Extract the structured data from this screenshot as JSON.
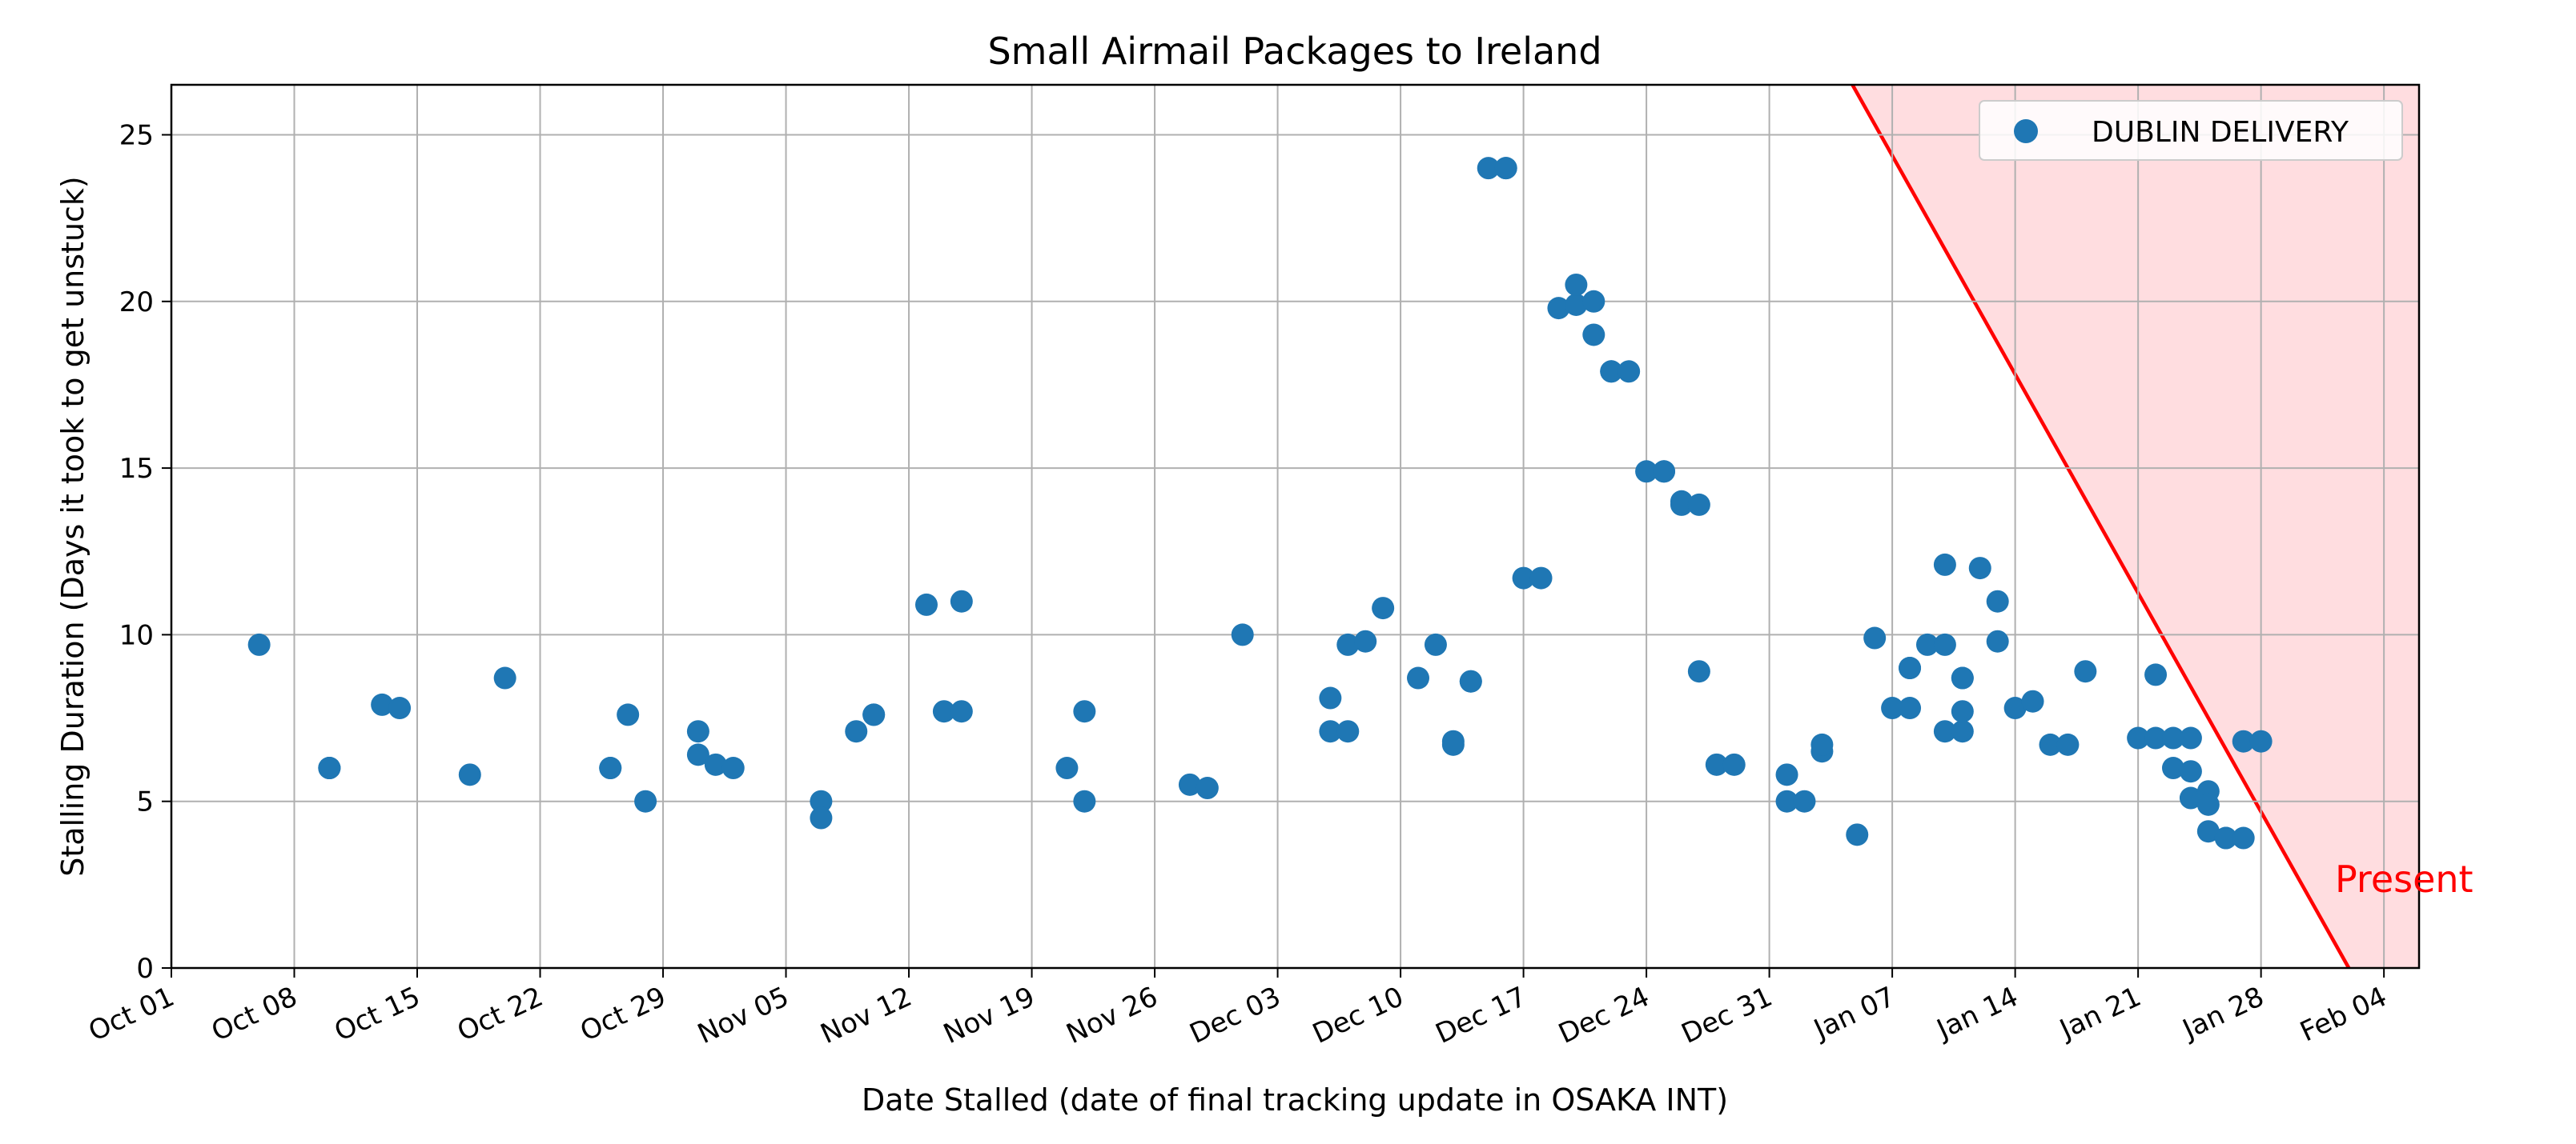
{
  "chart_data": {
    "type": "scatter",
    "title": "Small Airmail Packages to Ireland",
    "xlabel": "Date Stalled (date of final tracking update in OSAKA INT)",
    "ylabel": "Stalling Duration (Days it took to get unstuck)",
    "xlim": [
      "2023-10-01",
      "2024-02-06"
    ],
    "ylim": [
      0,
      26.5
    ],
    "x_ticks": [
      "Oct 01",
      "Oct 08",
      "Oct 15",
      "Oct 22",
      "Oct 29",
      "Nov 05",
      "Nov 12",
      "Nov 19",
      "Nov 26",
      "Dec 03",
      "Dec 10",
      "Dec 17",
      "Dec 24",
      "Dec 31",
      "Jan 07",
      "Jan 14",
      "Jan 21",
      "Jan 28",
      "Feb 04"
    ],
    "x_tick_dates": [
      "2023-10-01",
      "2023-10-08",
      "2023-10-15",
      "2023-10-22",
      "2023-10-29",
      "2023-11-05",
      "2023-11-12",
      "2023-11-19",
      "2023-11-26",
      "2023-12-03",
      "2023-12-10",
      "2023-12-17",
      "2023-12-24",
      "2023-12-31",
      "2024-01-07",
      "2024-01-14",
      "2024-01-21",
      "2024-01-28",
      "2024-02-04"
    ],
    "y_ticks": [
      0,
      5,
      10,
      15,
      20,
      25
    ],
    "grid": true,
    "legend_position": "top-right",
    "series": [
      {
        "name": "DUBLIN DELIVERY",
        "color": "#1f77b4",
        "points": [
          [
            "2023-10-06",
            9.7
          ],
          [
            "2023-10-10",
            6.0
          ],
          [
            "2023-10-10",
            6.0
          ],
          [
            "2023-10-10",
            6.0
          ],
          [
            "2023-10-13",
            7.9
          ],
          [
            "2023-10-14",
            7.8
          ],
          [
            "2023-10-18",
            5.8
          ],
          [
            "2023-10-20",
            8.7
          ],
          [
            "2023-10-26",
            6.0
          ],
          [
            "2023-10-26",
            6.0
          ],
          [
            "2023-10-27",
            7.6
          ],
          [
            "2023-10-28",
            5.0
          ],
          [
            "2023-10-31",
            7.1
          ],
          [
            "2023-10-31",
            6.4
          ],
          [
            "2023-11-01",
            6.1
          ],
          [
            "2023-11-02",
            6.0
          ],
          [
            "2023-11-07",
            5.0
          ],
          [
            "2023-11-07",
            4.5
          ],
          [
            "2023-11-09",
            7.1
          ],
          [
            "2023-11-10",
            7.6
          ],
          [
            "2023-11-10",
            7.6
          ],
          [
            "2023-11-13",
            10.9
          ],
          [
            "2023-11-14",
            7.7
          ],
          [
            "2023-11-15",
            11.0
          ],
          [
            "2023-11-15",
            7.7
          ],
          [
            "2023-11-21",
            6.0
          ],
          [
            "2023-11-22",
            7.7
          ],
          [
            "2023-11-22",
            5.0
          ],
          [
            "2023-11-28",
            5.5
          ],
          [
            "2023-11-29",
            5.4
          ],
          [
            "2023-12-01",
            10.0
          ],
          [
            "2023-12-06",
            8.1
          ],
          [
            "2023-12-06",
            7.1
          ],
          [
            "2023-12-07",
            7.1
          ],
          [
            "2023-12-07",
            9.7
          ],
          [
            "2023-12-08",
            9.8
          ],
          [
            "2023-12-09",
            10.8
          ],
          [
            "2023-12-11",
            8.7
          ],
          [
            "2023-12-12",
            9.7
          ],
          [
            "2023-12-13",
            6.7
          ],
          [
            "2023-12-13",
            6.8
          ],
          [
            "2023-12-14",
            8.6
          ],
          [
            "2023-12-14",
            8.6
          ],
          [
            "2023-12-15",
            24.0
          ],
          [
            "2023-12-16",
            24.0
          ],
          [
            "2023-12-16",
            24.0
          ],
          [
            "2023-12-17",
            11.7
          ],
          [
            "2023-12-18",
            11.7
          ],
          [
            "2023-12-19",
            19.8
          ],
          [
            "2023-12-20",
            19.9
          ],
          [
            "2023-12-20",
            20.5
          ],
          [
            "2023-12-21",
            19.0
          ],
          [
            "2023-12-21",
            20.0
          ],
          [
            "2023-12-22",
            17.9
          ],
          [
            "2023-12-22",
            17.9
          ],
          [
            "2023-12-23",
            17.9
          ],
          [
            "2023-12-24",
            14.9
          ],
          [
            "2023-12-25",
            14.9
          ],
          [
            "2023-12-25",
            14.9
          ],
          [
            "2023-12-26",
            13.9
          ],
          [
            "2023-12-26",
            14.0
          ],
          [
            "2023-12-27",
            13.9
          ],
          [
            "2023-12-27",
            8.9
          ],
          [
            "2023-12-28",
            6.1
          ],
          [
            "2023-12-29",
            6.1
          ],
          [
            "2024-01-01",
            5.8
          ],
          [
            "2024-01-01",
            5.0
          ],
          [
            "2024-01-02",
            5.0
          ],
          [
            "2024-01-03",
            6.5
          ],
          [
            "2024-01-03",
            6.7
          ],
          [
            "2024-01-05",
            4.0
          ],
          [
            "2024-01-06",
            9.9
          ],
          [
            "2024-01-07",
            7.8
          ],
          [
            "2024-01-08",
            7.8
          ],
          [
            "2024-01-08",
            9.0
          ],
          [
            "2024-01-08",
            9.0
          ],
          [
            "2024-01-09",
            9.7
          ],
          [
            "2024-01-10",
            9.7
          ],
          [
            "2024-01-10",
            7.1
          ],
          [
            "2024-01-10",
            12.1
          ],
          [
            "2024-01-11",
            8.7
          ],
          [
            "2024-01-11",
            8.7
          ],
          [
            "2024-01-11",
            7.1
          ],
          [
            "2024-01-11",
            7.7
          ],
          [
            "2024-01-12",
            12.0
          ],
          [
            "2024-01-13",
            11.0
          ],
          [
            "2024-01-13",
            9.8
          ],
          [
            "2024-01-14",
            7.8
          ],
          [
            "2024-01-15",
            8.0
          ],
          [
            "2024-01-16",
            6.7
          ],
          [
            "2024-01-17",
            6.7
          ],
          [
            "2024-01-18",
            8.9
          ],
          [
            "2024-01-21",
            6.9
          ],
          [
            "2024-01-22",
            6.9
          ],
          [
            "2024-01-22",
            8.8
          ],
          [
            "2024-01-23",
            6.9
          ],
          [
            "2024-01-23",
            6.0
          ],
          [
            "2024-01-24",
            6.9
          ],
          [
            "2024-01-24",
            5.9
          ],
          [
            "2024-01-24",
            5.1
          ],
          [
            "2024-01-25",
            4.1
          ],
          [
            "2024-01-25",
            5.3
          ],
          [
            "2024-01-25",
            4.9
          ],
          [
            "2024-01-26",
            3.9
          ],
          [
            "2024-01-26",
            3.9
          ],
          [
            "2024-01-27",
            3.9
          ],
          [
            "2024-01-27",
            6.8
          ],
          [
            "2024-01-28",
            6.8
          ]
        ]
      }
    ],
    "present_region": {
      "label": "Present",
      "color": "#ff0000",
      "fill": "#ffdde0",
      "line": [
        [
          "2024-01-01",
          30.0
        ],
        [
          "2024-02-02",
          0
        ]
      ]
    }
  }
}
